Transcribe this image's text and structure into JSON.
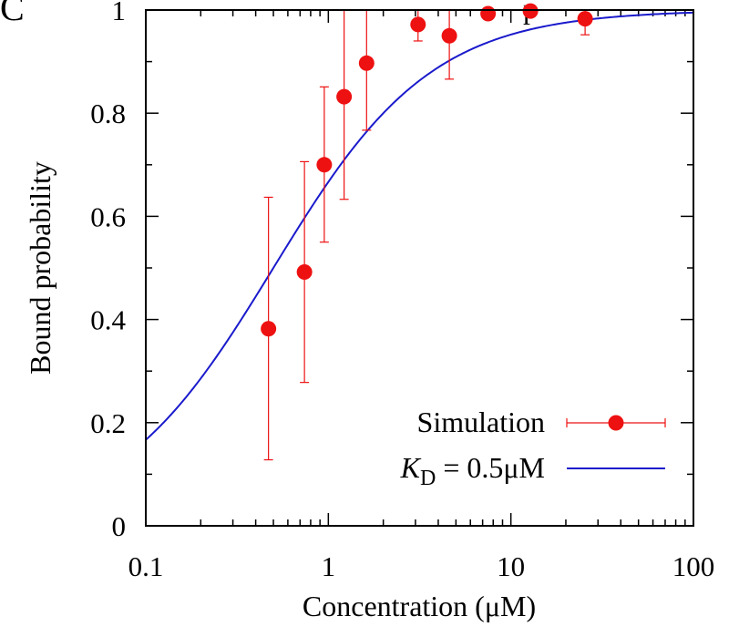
{
  "panel_label": "C",
  "top_fragment": "p",
  "chart_data": {
    "type": "scatter",
    "title": "",
    "xlabel": "Concentration (μM)",
    "ylabel": "Bound probability",
    "xscale": "log",
    "xlim": [
      0.1,
      100
    ],
    "ylim": [
      0,
      1
    ],
    "x_ticks": [
      {
        "value": 0.1,
        "label": "0.1"
      },
      {
        "value": 1,
        "label": "1"
      },
      {
        "value": 10,
        "label": "10"
      },
      {
        "value": 100,
        "label": "100"
      }
    ],
    "y_ticks": [
      {
        "value": 0,
        "label": "0"
      },
      {
        "value": 0.2,
        "label": "0.2"
      },
      {
        "value": 0.4,
        "label": "0.4"
      },
      {
        "value": 0.6,
        "label": "0.6"
      },
      {
        "value": 0.8,
        "label": "0.8"
      },
      {
        "value": 1,
        "label": "1"
      }
    ],
    "grid": false,
    "legend_position": "bottom-right",
    "series": [
      {
        "name": "Simulation",
        "kind": "points-with-error-bars",
        "color": "#ee1111",
        "points": [
          {
            "x": 0.47,
            "y": 0.382,
            "ylow": 0.128,
            "yhigh": 0.637
          },
          {
            "x": 0.74,
            "y": 0.492,
            "ylow": 0.278,
            "yhigh": 0.706
          },
          {
            "x": 0.95,
            "y": 0.7,
            "ylow": 0.55,
            "yhigh": 0.851
          },
          {
            "x": 1.22,
            "y": 0.832,
            "ylow": 0.633,
            "yhigh": 1.0
          },
          {
            "x": 1.62,
            "y": 0.897,
            "ylow": 0.767,
            "yhigh": 1.0
          },
          {
            "x": 3.1,
            "y": 0.972,
            "ylow": 0.94,
            "yhigh": 1.0
          },
          {
            "x": 4.6,
            "y": 0.95,
            "ylow": 0.866,
            "yhigh": 1.0
          },
          {
            "x": 7.5,
            "y": 0.993,
            "ylow": 0.99,
            "yhigh": 1.0
          },
          {
            "x": 12.8,
            "y": 0.998,
            "ylow": 0.996,
            "yhigh": 1.0
          },
          {
            "x": 25.5,
            "y": 0.983,
            "ylow": 0.952,
            "yhigh": 1.0
          }
        ]
      },
      {
        "name_italic": "K",
        "name_sub": "D",
        "name_rest": " = 0.5μM",
        "kind": "curve",
        "color": "#1a1acc",
        "kd": 0.5,
        "equation": "y = x / (x + K_D)"
      }
    ]
  }
}
